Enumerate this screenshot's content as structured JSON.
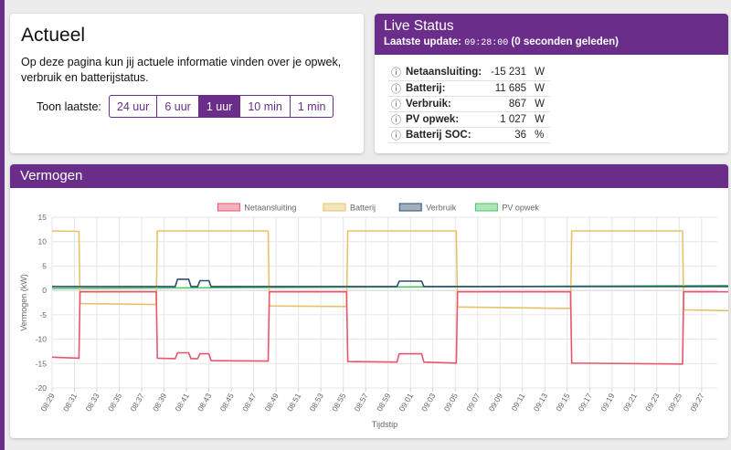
{
  "actueel": {
    "title": "Actueel",
    "description": "Op deze pagina kun jij actuele informatie vinden over je opwek, verbruik en batterijstatus.",
    "toon_label": "Toon laatste:",
    "options": [
      "24 uur",
      "6 uur",
      "1 uur",
      "10 min",
      "1 min"
    ],
    "selected": "1 uur"
  },
  "live": {
    "title": "Live Status",
    "update_label": "Laatste update:",
    "update_time": "09:28:00",
    "update_ago": "(0 seconden geleden)",
    "rows": [
      {
        "label": "Netaansluiting:",
        "value": "-15 231",
        "unit": "W"
      },
      {
        "label": "Batterij:",
        "value": "11 685",
        "unit": "W"
      },
      {
        "label": "Verbruik:",
        "value": "867",
        "unit": "W"
      },
      {
        "label": "PV opwek:",
        "value": "1 027",
        "unit": "W"
      },
      {
        "label": "Batterij SOC:",
        "value": "36",
        "unit": "%"
      }
    ]
  },
  "vermogen": {
    "title": "Vermogen"
  },
  "colors": {
    "accent": "#6a2e8a",
    "netaansluiting": "#e8556e",
    "batterij": "#e6c36a",
    "verbruik": "#2f4f6f",
    "pv_opwek": "#4cc464"
  },
  "chart_data": {
    "type": "line",
    "xlabel": "Tijdstip",
    "ylabel": "Vermogen (kW)",
    "ylim": [
      -20,
      15
    ],
    "yticks": [
      15,
      10,
      5,
      0,
      -5,
      -10,
      -15,
      -20
    ],
    "xticks": [
      "08:29",
      "08:31",
      "08:33",
      "08:35",
      "08:37",
      "08:39",
      "08:41",
      "08:43",
      "08:45",
      "08:47",
      "08:49",
      "08:51",
      "08:53",
      "08:55",
      "08:57",
      "08:59",
      "09:01",
      "09:03",
      "09:05",
      "09:07",
      "09:09",
      "09:11",
      "09:13",
      "09:15",
      "09:17",
      "09:19",
      "09:21",
      "09:23",
      "09:25",
      "09:27"
    ],
    "grid": true,
    "legend_position": "top",
    "series": [
      {
        "name": "Netaansluiting",
        "points": [
          [
            0,
            -13.7
          ],
          [
            2.4,
            -13.9
          ],
          [
            2.5,
            -0.3
          ],
          [
            9.3,
            -0.3
          ],
          [
            9.4,
            -13.9
          ],
          [
            11.0,
            -14.0
          ],
          [
            11.2,
            -12.8
          ],
          [
            12.2,
            -12.8
          ],
          [
            12.4,
            -14.0
          ],
          [
            13.0,
            -14.0
          ],
          [
            13.2,
            -13.0
          ],
          [
            14.0,
            -13.0
          ],
          [
            14.2,
            -14.4
          ],
          [
            19.3,
            -14.5
          ],
          [
            19.4,
            -0.3
          ],
          [
            26.3,
            -0.3
          ],
          [
            26.4,
            -14.6
          ],
          [
            30.8,
            -14.7
          ],
          [
            31.0,
            -13.0
          ],
          [
            33.0,
            -13.0
          ],
          [
            33.2,
            -14.7
          ],
          [
            36.1,
            -14.9
          ],
          [
            36.2,
            -0.3
          ],
          [
            46.3,
            -0.3
          ],
          [
            46.4,
            -14.9
          ],
          [
            56.3,
            -15.1
          ],
          [
            56.4,
            -0.3
          ],
          [
            61.7,
            -0.3
          ],
          [
            61.8,
            -15.0
          ],
          [
            63.8,
            -15.0
          ],
          [
            64.0,
            -13.1
          ],
          [
            67.6,
            -13.2
          ],
          [
            67.8,
            -15.1
          ],
          [
            68.3,
            -15.1
          ]
        ]
      },
      {
        "name": "Batterij",
        "points": [
          [
            0,
            12.2
          ],
          [
            2.4,
            12.1
          ],
          [
            2.5,
            -2.7
          ],
          [
            9.3,
            -2.9
          ],
          [
            9.4,
            12.2
          ],
          [
            19.3,
            12.2
          ],
          [
            19.4,
            -3.2
          ],
          [
            26.3,
            -3.3
          ],
          [
            26.4,
            12.2
          ],
          [
            36.1,
            12.2
          ],
          [
            36.2,
            -3.4
          ],
          [
            46.3,
            -3.7
          ],
          [
            46.4,
            12.2
          ],
          [
            56.3,
            12.2
          ],
          [
            56.4,
            -4.0
          ],
          [
            61.7,
            -4.2
          ],
          [
            61.8,
            11.9
          ],
          [
            68.3,
            11.8
          ]
        ]
      },
      {
        "name": "Verbruik",
        "points": [
          [
            0,
            0.8
          ],
          [
            11.0,
            0.8
          ],
          [
            11.2,
            2.3
          ],
          [
            12.2,
            2.3
          ],
          [
            12.4,
            0.8
          ],
          [
            13.0,
            0.8
          ],
          [
            13.2,
            2.0
          ],
          [
            14.0,
            2.0
          ],
          [
            14.2,
            0.8
          ],
          [
            30.8,
            0.8
          ],
          [
            31.0,
            1.9
          ],
          [
            33.0,
            1.9
          ],
          [
            33.2,
            0.8
          ],
          [
            63.8,
            0.8
          ],
          [
            64.0,
            3.0
          ],
          [
            67.6,
            3.0
          ],
          [
            67.8,
            0.9
          ],
          [
            68.3,
            0.9
          ]
        ]
      },
      {
        "name": "PV opwek",
        "points": [
          [
            0,
            0.4
          ],
          [
            10,
            0.5
          ],
          [
            20,
            0.6
          ],
          [
            30,
            0.7
          ],
          [
            40,
            0.8
          ],
          [
            50,
            0.9
          ],
          [
            60,
            1.0
          ],
          [
            68.3,
            1.0
          ]
        ]
      }
    ]
  }
}
